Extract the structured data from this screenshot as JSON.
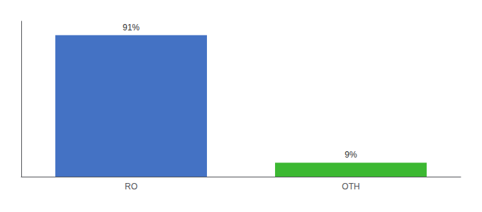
{
  "chart_data": {
    "type": "bar",
    "categories": [
      "RO",
      "OTH"
    ],
    "values": [
      91,
      9
    ],
    "value_labels": [
      "91%",
      "9%"
    ],
    "colors": [
      "#4472c4",
      "#3cb832"
    ],
    "ylim": [
      0,
      100
    ],
    "data_labels": true,
    "tick_labels": "x",
    "grid": false
  }
}
